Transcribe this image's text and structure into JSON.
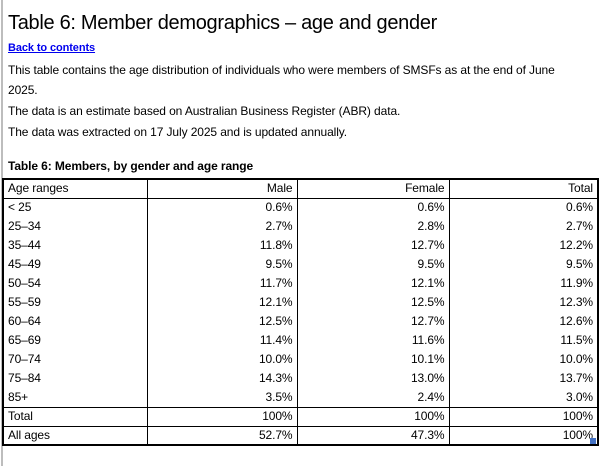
{
  "page": {
    "title": "Table 6: Member demographics – age and gender",
    "back_link": "Back to contents",
    "paragraphs": [
      {
        "lines": [
          "This table contains the age distribution of individuals who were members of SMSFs as at the end of June",
          "2025."
        ]
      },
      {
        "lines": [
          "The data is an estimate based on Australian Business Register (ABR) data."
        ]
      },
      {
        "lines": [
          "The data was extracted on 17 July 2025 and is updated annually."
        ]
      }
    ],
    "table": {
      "caption": "Table 6: Members, by gender and age range",
      "columns": [
        "Age ranges",
        "Male",
        "Female",
        "Total"
      ],
      "age_rows": [
        [
          "< 25",
          "0.6%",
          "0.6%",
          "0.6%"
        ],
        [
          "25–34",
          "2.7%",
          "2.8%",
          "2.7%"
        ],
        [
          "35–44",
          "11.8%",
          "12.7%",
          "12.2%"
        ],
        [
          "45–49",
          "9.5%",
          "9.5%",
          "9.5%"
        ],
        [
          "50–54",
          "11.7%",
          "12.1%",
          "11.9%"
        ],
        [
          "55–59",
          "12.1%",
          "12.5%",
          "12.3%"
        ],
        [
          "60–64",
          "12.5%",
          "12.7%",
          "12.6%"
        ],
        [
          "65–69",
          "11.4%",
          "11.6%",
          "11.5%"
        ],
        [
          "70–74",
          "10.0%",
          "10.1%",
          "10.0%"
        ],
        [
          "75–84",
          "14.3%",
          "13.0%",
          "13.7%"
        ],
        [
          "85+",
          "3.5%",
          "2.4%",
          "3.0%"
        ]
      ],
      "summary_rows": [
        [
          "Total",
          "100%",
          "100%",
          "100%"
        ],
        [
          "All ages",
          "52.7%",
          "47.3%",
          "100%"
        ]
      ]
    },
    "colors": {
      "link": "#0000ee",
      "selection_handle": "#4472c4",
      "page_edge": "#bdbdbd",
      "table_border": "#000000"
    }
  }
}
